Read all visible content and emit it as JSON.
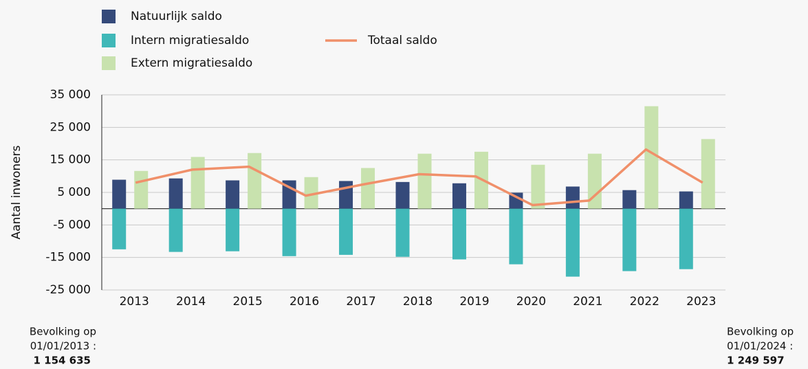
{
  "chart_data": {
    "type": "bar",
    "categories": [
      "2013",
      "2014",
      "2015",
      "2016",
      "2017",
      "2018",
      "2019",
      "2020",
      "2021",
      "2022",
      "2023"
    ],
    "series": [
      {
        "name": "Natuurlijk saldo",
        "type": "bar",
        "color": "#354a7a",
        "values": [
          8900,
          9300,
          8700,
          8700,
          8500,
          8200,
          7800,
          4900,
          6800,
          5700,
          5300
        ]
      },
      {
        "name": "Intern migratiesaldo",
        "type": "bar",
        "color": "#40b8b8",
        "values": [
          -12500,
          -13300,
          -13100,
          -14600,
          -14200,
          -14800,
          -15600,
          -17100,
          -20900,
          -19200,
          -18600
        ]
      },
      {
        "name": "Extern migratiesaldo",
        "type": "bar",
        "color": "#c8e2ae",
        "values": [
          11600,
          15900,
          17100,
          9700,
          12500,
          16900,
          17500,
          13500,
          16900,
          31500,
          21400
        ]
      },
      {
        "name": "Totaal saldo",
        "type": "line",
        "color": "#f0906a",
        "values": [
          8000,
          12000,
          12900,
          4000,
          7400,
          10600,
          9900,
          1100,
          2500,
          18200,
          8000
        ]
      }
    ],
    "y_label": "Aantal inwoners",
    "ylim": [
      -25000,
      35000
    ],
    "yticks": [
      {
        "value": 35000,
        "label": "35 000"
      },
      {
        "value": 25000,
        "label": "25 000"
      },
      {
        "value": 15000,
        "label": "15 000"
      },
      {
        "value": 5000,
        "label": "5 000"
      },
      {
        "value": -5000,
        "label": "-5 000"
      },
      {
        "value": -15000,
        "label": "-15 000"
      },
      {
        "value": -25000,
        "label": "-25 000"
      }
    ],
    "grid": true,
    "annotations": {
      "left": [
        "Bevolking op",
        "01/01/2013 :",
        "1 154 635"
      ],
      "right": [
        "Bevolking op",
        "01/01/2024 :",
        "1 249 597"
      ]
    }
  }
}
